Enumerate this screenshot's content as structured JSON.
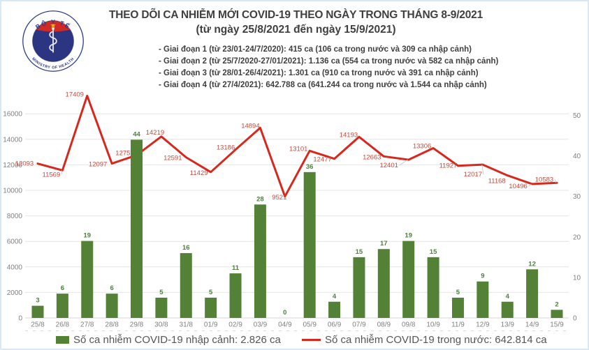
{
  "header": {
    "title": "THEO DÕI CA NHIỄM MỚI COVID-19 THEO NGÀY TRONG THÁNG 8-9/2021",
    "subtitle": "(từ ngày 25/8/2021 đến ngày 15/9/2021)",
    "phases": [
      "- Giai đoạn 1 (từ 23/01-24/7/2020): 415 ca (106 ca trong nước và 309 ca nhập cảnh)",
      "- Giai đoạn 2 (từ 25/7/2020-27/01/2021): 1.136 ca (554 ca trong nước và 582 ca nhập cảnh)",
      "- Giai đoạn 3 (từ 28/01-26/4/2021): 1.301 ca (910 ca trong nước và 391 ca nhập cảnh)",
      "- Giai đoạn 4 (từ 27/4/2021): 642.788 ca (641.244 ca trong nước và 1.544 ca nhập cảnh)"
    ]
  },
  "logo": {
    "top_text": "BỘ Y TẾ",
    "bottom_text": "MINISTRY OF HEALTH"
  },
  "chart_data": {
    "type": "bar",
    "subtype": "combo-bar-line-dual-axis",
    "categories": [
      "25/8",
      "26/8",
      "27/8",
      "28/8",
      "29/8",
      "30/8",
      "31/8",
      "01/9",
      "02/9",
      "03/9",
      "04/9",
      "05/9",
      "06/9",
      "07/9",
      "08/9",
      "09/8",
      "10/9",
      "11/9",
      "12/9",
      "13/9",
      "14/9",
      "15/9"
    ],
    "series": [
      {
        "name": "Số ca nhiễm COVID-19 nhập cảnh",
        "render": "bar",
        "axis": "right",
        "color": "#538135",
        "label_color": "#4e8040",
        "values": [
          3,
          6,
          19,
          6,
          44,
          5,
          16,
          5,
          11,
          28,
          0,
          36,
          4,
          15,
          17,
          19,
          15,
          5,
          9,
          4,
          12,
          2
        ]
      },
      {
        "name": "Số ca nhiễm COVID-19 trong nước",
        "render": "line",
        "axis": "left",
        "color": "#d8271c",
        "label_color": "#c74a3d",
        "values": [
          12093,
          11569,
          17409,
          12097,
          12752,
          14219,
          12591,
          11429,
          13186,
          14894,
          9521,
          13101,
          12477,
          14193,
          12663,
          12401,
          13306,
          11927,
          12017,
          11168,
          10496,
          10583
        ]
      }
    ],
    "left_axis": {
      "min": 0,
      "max": 16000,
      "step": 2000,
      "ticks": [
        "0",
        "2000",
        "4000",
        "6000",
        "8000",
        "10000",
        "12000",
        "14000",
        "16000"
      ]
    },
    "right_axis": {
      "min": 0,
      "max": 50,
      "step": 10,
      "ticks": [
        "0",
        "10",
        "20",
        "30",
        "40",
        "50"
      ]
    },
    "grid": true,
    "axis_text_color": "#7f7f7f",
    "grid_color": "#e4e4e4",
    "legend_position": "bottom"
  },
  "legend": {
    "items": [
      {
        "label": "Số ca nhiễm COVID-19 nhập cảnh: 2.826 ca",
        "color": "#538135",
        "type": "square"
      },
      {
        "label": "Số ca nhiễm COVID-19 trong nước: 642.814 ca",
        "color": "#d8271c",
        "type": "line"
      }
    ]
  }
}
